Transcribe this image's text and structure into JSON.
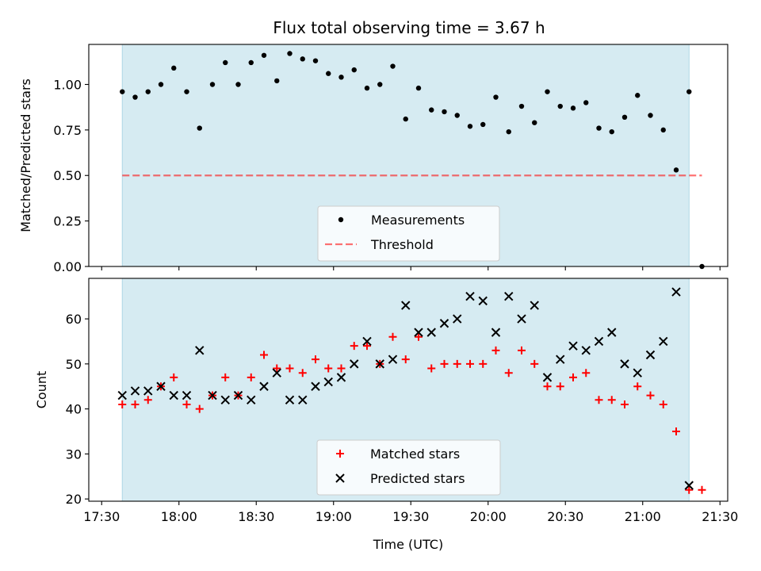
{
  "title": "Flux total observing time = 3.67 h",
  "colors": {
    "span": "#add8e6",
    "measurement": "#000000",
    "threshold": "#ff0000",
    "matched": "#ff0000",
    "predicted": "#000000"
  },
  "chart_data": [
    {
      "type": "scatter",
      "panel": "top",
      "ylabel": "Matched/Predicted stars",
      "ylim": [
        0,
        1.22
      ],
      "xlim": [
        "17:25",
        "21:33"
      ],
      "yticks": [
        0.0,
        0.25,
        0.5,
        0.75,
        1.0
      ],
      "ytick_labels": [
        "0.00",
        "0.25",
        "0.50",
        "0.75",
        "1.00"
      ],
      "shaded_span": [
        "17:38",
        "21:18"
      ],
      "legend": {
        "position": "lower-center",
        "entries": [
          "Measurements",
          "Threshold"
        ]
      },
      "threshold": {
        "name": "Threshold",
        "value": 0.5,
        "x_range": [
          "17:38",
          "21:23"
        ],
        "style": "dashed"
      },
      "series": [
        {
          "name": "Measurements",
          "marker": "dot",
          "x": [
            "17:38",
            "17:43",
            "17:48",
            "17:53",
            "17:58",
            "18:03",
            "18:08",
            "18:13",
            "18:18",
            "18:23",
            "18:28",
            "18:33",
            "18:38",
            "18:43",
            "18:48",
            "18:53",
            "18:58",
            "19:03",
            "19:08",
            "19:13",
            "19:18",
            "19:23",
            "19:28",
            "19:33",
            "19:38",
            "19:43",
            "19:48",
            "19:53",
            "19:58",
            "20:03",
            "20:08",
            "20:13",
            "20:18",
            "20:23",
            "20:28",
            "20:33",
            "20:38",
            "20:43",
            "20:48",
            "20:53",
            "20:58",
            "21:03",
            "21:08",
            "21:13",
            "21:18",
            "21:23"
          ],
          "values": [
            0.96,
            0.93,
            0.96,
            1.0,
            1.09,
            0.96,
            0.76,
            1.0,
            1.12,
            1.0,
            1.12,
            1.16,
            1.02,
            1.17,
            1.14,
            1.13,
            1.06,
            1.04,
            1.08,
            0.98,
            1.0,
            1.1,
            0.81,
            0.98,
            0.86,
            0.85,
            0.83,
            0.77,
            0.78,
            0.93,
            0.74,
            0.88,
            0.79,
            0.96,
            0.88,
            0.87,
            0.9,
            0.76,
            0.74,
            0.82,
            0.94,
            0.83,
            0.75,
            0.53,
            0.96,
            0.0
          ]
        }
      ]
    },
    {
      "type": "scatter",
      "panel": "bottom",
      "xlabel": "Time (UTC)",
      "ylabel": "Count",
      "ylim": [
        19.5,
        69
      ],
      "xlim": [
        "17:25",
        "21:33"
      ],
      "yticks": [
        20,
        30,
        40,
        50,
        60
      ],
      "xtick_labels": [
        "17:30",
        "18:00",
        "18:30",
        "19:00",
        "19:30",
        "20:00",
        "20:30",
        "21:00",
        "21:30"
      ],
      "shaded_span": [
        "17:38",
        "21:18"
      ],
      "legend": {
        "position": "lower-center",
        "entries": [
          "Matched stars",
          "Predicted stars"
        ]
      },
      "series": [
        {
          "name": "Matched stars",
          "marker": "plus",
          "x": [
            "17:38",
            "17:43",
            "17:48",
            "17:53",
            "17:58",
            "18:03",
            "18:08",
            "18:13",
            "18:18",
            "18:23",
            "18:28",
            "18:33",
            "18:38",
            "18:43",
            "18:48",
            "18:53",
            "18:58",
            "19:03",
            "19:08",
            "19:13",
            "19:18",
            "19:23",
            "19:28",
            "19:33",
            "19:38",
            "19:43",
            "19:48",
            "19:53",
            "19:58",
            "20:03",
            "20:08",
            "20:13",
            "20:18",
            "20:23",
            "20:28",
            "20:33",
            "20:38",
            "20:43",
            "20:48",
            "20:53",
            "20:58",
            "21:03",
            "21:08",
            "21:13",
            "21:18",
            "21:23"
          ],
          "values": [
            41,
            41,
            42,
            45,
            47,
            41,
            40,
            43,
            47,
            43,
            47,
            52,
            49,
            49,
            48,
            51,
            49,
            49,
            54,
            54,
            50,
            56,
            51,
            56,
            49,
            50,
            50,
            50,
            50,
            53,
            48,
            53,
            50,
            45,
            45,
            47,
            48,
            42,
            42,
            41,
            45,
            43,
            41,
            35,
            22,
            22
          ]
        },
        {
          "name": "Predicted stars",
          "marker": "x",
          "x": [
            "17:38",
            "17:43",
            "17:48",
            "17:53",
            "17:58",
            "18:03",
            "18:08",
            "18:13",
            "18:18",
            "18:23",
            "18:28",
            "18:33",
            "18:38",
            "18:43",
            "18:48",
            "18:53",
            "18:58",
            "19:03",
            "19:08",
            "19:13",
            "19:18",
            "19:23",
            "19:28",
            "19:33",
            "19:38",
            "19:43",
            "19:48",
            "19:53",
            "19:58",
            "20:03",
            "20:08",
            "20:13",
            "20:18",
            "20:23",
            "20:28",
            "20:33",
            "20:38",
            "20:43",
            "20:48",
            "20:53",
            "20:58",
            "21:03",
            "21:08",
            "21:13",
            "21:18"
          ],
          "values": [
            43,
            44,
            44,
            45,
            43,
            43,
            53,
            43,
            42,
            43,
            42,
            45,
            48,
            42,
            42,
            45,
            46,
            47,
            50,
            55,
            50,
            51,
            63,
            57,
            57,
            59,
            60,
            65,
            64,
            57,
            65,
            60,
            63,
            47,
            51,
            54,
            53,
            55,
            57,
            50,
            48,
            52,
            55,
            66,
            23
          ]
        }
      ]
    }
  ]
}
